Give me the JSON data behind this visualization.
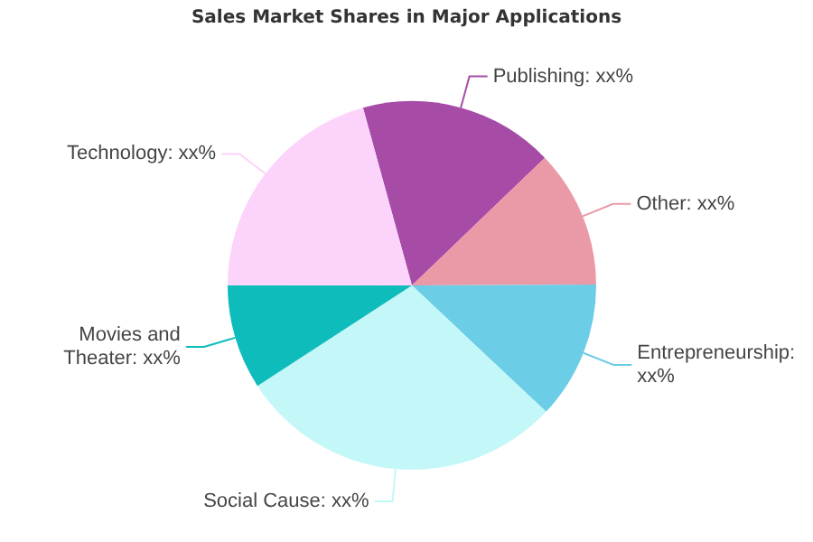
{
  "chart_data": {
    "type": "pie",
    "title": "Sales Market Shares in Major Applications",
    "categories": [
      "Publishing: xx%",
      "Other: xx%",
      "Entrepreneurship: xx%",
      "Social Cause: xx%",
      "Movies and Theater: xx%",
      "Technology: xx%"
    ],
    "values": [
      17.1,
      12.1,
      12.1,
      28.8,
      9.2,
      20.7
    ],
    "colors": [
      "#a64ca6",
      "#ea9aa6",
      "#6ccde6",
      "#c4f7f8",
      "#0fbcbc",
      "#fbd3fb"
    ],
    "legend": false
  }
}
